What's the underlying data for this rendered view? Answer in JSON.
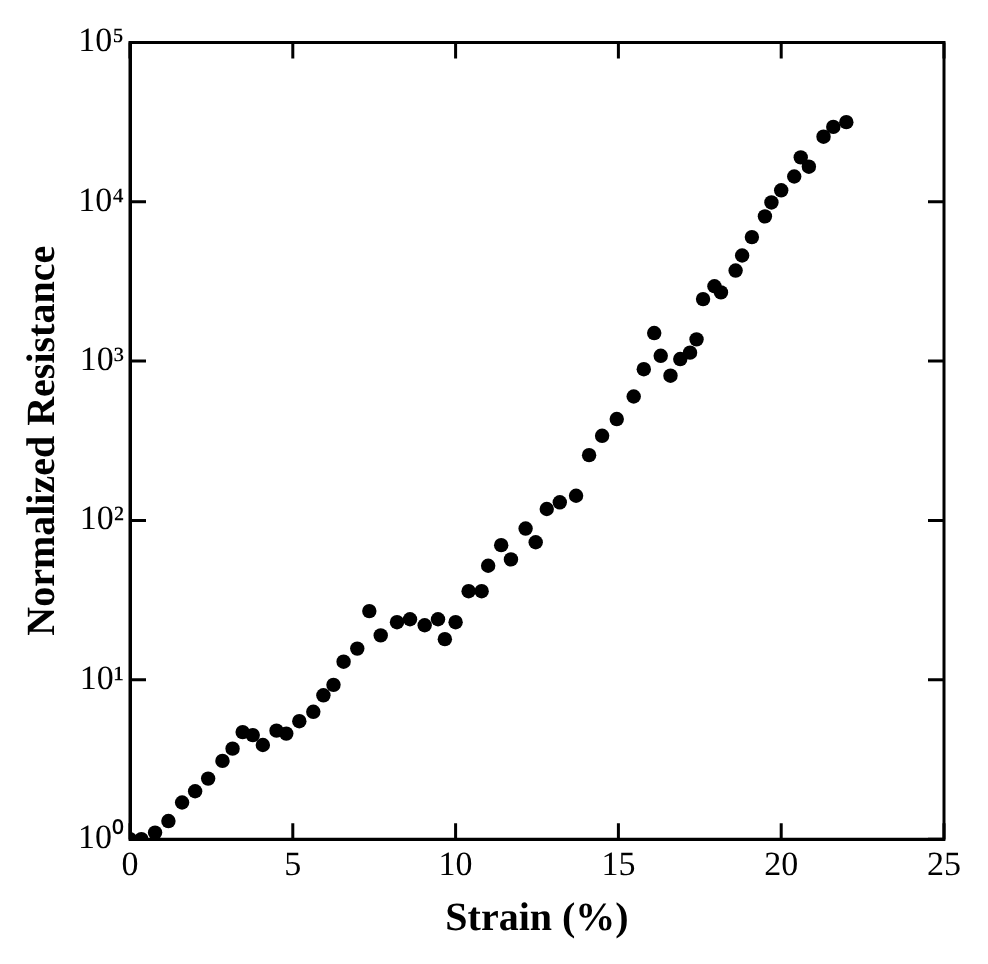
{
  "chart_data": {
    "type": "scatter",
    "xlabel": "Strain (%)",
    "ylabel": "Normalized Resistance",
    "log": "y",
    "grid": false,
    "marker": "circle",
    "xlim": [
      0,
      25
    ],
    "ylim": [
      1,
      100000
    ],
    "xticks": [
      0,
      5,
      10,
      15,
      20,
      25
    ],
    "yticks": [
      {
        "value": 1,
        "label": "10⁰"
      },
      {
        "value": 10,
        "label": "10¹"
      },
      {
        "value": 100,
        "label": "10²"
      },
      {
        "value": 1000,
        "label": "10³"
      },
      {
        "value": 10000,
        "label": "10⁴"
      },
      {
        "value": 100000,
        "label": "10⁵"
      }
    ],
    "series": [
      {
        "color": "#000000",
        "x": [
          0,
          0.35,
          0.77,
          1.18,
          1.6,
          2.0,
          2.4,
          2.84,
          3.15,
          3.46,
          3.77,
          4.08,
          4.5,
          4.8,
          5.2,
          5.63,
          5.94,
          6.25,
          6.56,
          6.98,
          7.35,
          7.7,
          8.2,
          8.6,
          9.05,
          9.46,
          9.67,
          10.0,
          10.4,
          10.8,
          11.0,
          11.4,
          11.7,
          12.15,
          12.46,
          12.8,
          13.2,
          13.7,
          14.1,
          14.5,
          14.95,
          15.47,
          15.78,
          16.1,
          16.3,
          16.6,
          16.9,
          17.2,
          17.4,
          17.6,
          17.95,
          18.15,
          18.6,
          18.8,
          19.1,
          19.5,
          19.7,
          20.0,
          20.4,
          20.6,
          20.85,
          21.3,
          21.6,
          22.0
        ],
        "values": [
          1,
          1,
          1.1,
          1.3,
          1.7,
          2.0,
          2.4,
          3.1,
          3.7,
          4.7,
          4.5,
          3.9,
          4.8,
          4.6,
          5.5,
          6.3,
          8.0,
          9.3,
          13,
          15.7,
          27,
          19,
          23,
          24,
          22,
          24,
          18,
          23,
          36,
          36,
          52,
          70,
          57,
          89,
          73,
          118,
          130,
          143,
          257,
          340,
          433,
          600,
          890,
          1500,
          1080,
          810,
          1030,
          1130,
          1370,
          2450,
          2950,
          2700,
          3700,
          4600,
          6000,
          8100,
          9900,
          11800,
          14400,
          19000,
          16600,
          25600,
          29500,
          31600
        ]
      }
    ]
  }
}
